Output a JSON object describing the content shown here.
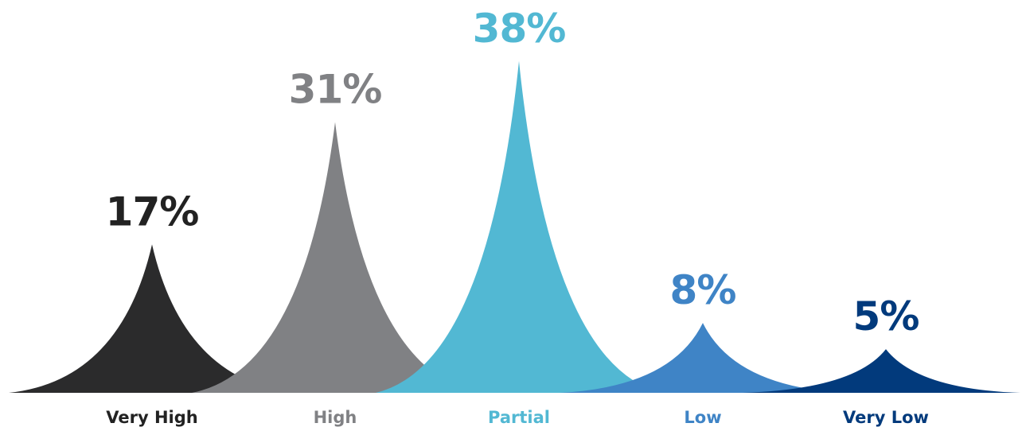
{
  "chart_data": {
    "type": "area",
    "title": "",
    "xlabel": "",
    "ylabel": "",
    "unit": "%",
    "ylim": [
      0,
      40
    ],
    "grid": false,
    "legend": "none",
    "categories": [
      "Very High",
      "High",
      "Partial",
      "Low",
      "Very Low"
    ],
    "values": [
      17,
      31,
      38,
      8,
      5
    ],
    "value_labels": [
      "17%",
      "31%",
      "38%",
      "8%",
      "5%"
    ],
    "colors": [
      "#2b2b2c",
      "#808184",
      "#52b8d3",
      "#3f84c6",
      "#023a7c"
    ],
    "label_colors": [
      "#222222",
      "#808184",
      "#52b8d3",
      "#3f84c6",
      "#023a7c"
    ]
  }
}
